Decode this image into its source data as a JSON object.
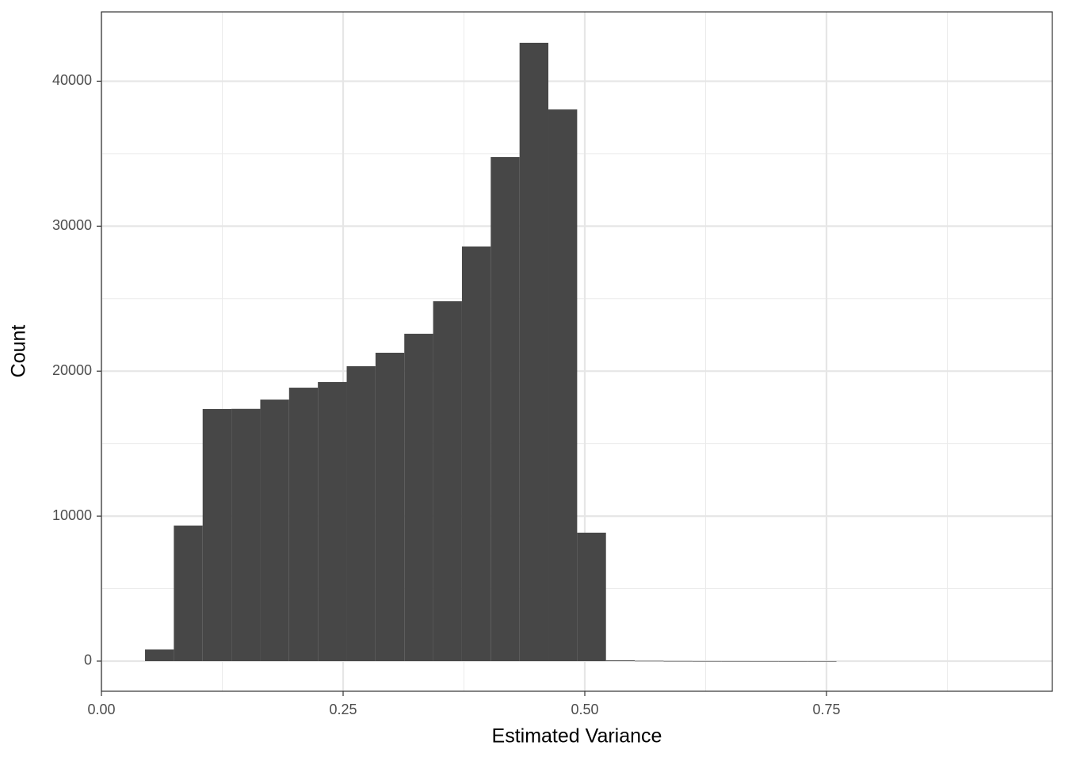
{
  "chart_data": {
    "type": "histogram",
    "x_label": "Estimated Variance",
    "y_label": "Count",
    "color": "#474747",
    "grid": true,
    "bins": [
      0.0451,
      0.0749,
      0.1047,
      0.1345,
      0.1643,
      0.1941,
      0.2239,
      0.2537,
      0.2835,
      0.3133,
      0.3431,
      0.3729,
      0.4027,
      0.4325,
      0.4623,
      0.4921,
      0.5219,
      0.5517,
      0.5815,
      0.6113,
      0.6411,
      0.6709,
      0.7007,
      0.7305,
      0.7603
    ],
    "values": [
      800,
      9350,
      17390,
      17400,
      18040,
      18860,
      19250,
      20340,
      21270,
      22580,
      24820,
      28600,
      34770,
      42650,
      38050,
      8860,
      50,
      20,
      8,
      4,
      3,
      2,
      1,
      1
    ],
    "xlim": [
      0,
      0.9836
    ],
    "ylim": [
      -2078,
      44780
    ],
    "xticks": [
      {
        "value": 0,
        "label": "0.00"
      },
      {
        "value": 0.25,
        "label": "0.25"
      },
      {
        "value": 0.5,
        "label": "0.50"
      },
      {
        "value": 0.75,
        "label": "0.75"
      }
    ],
    "yticks": [
      0,
      10000,
      20000,
      30000,
      40000
    ]
  }
}
